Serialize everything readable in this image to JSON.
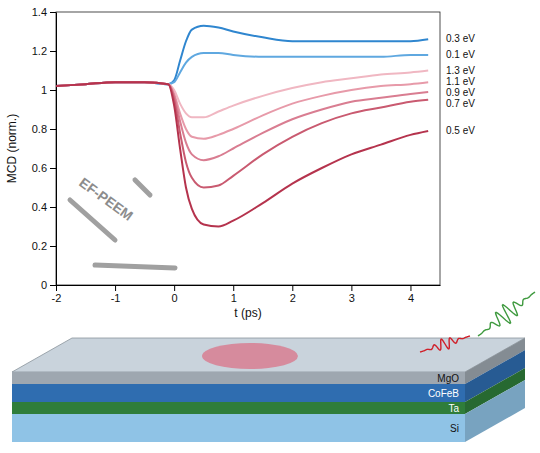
{
  "chart_data": {
    "type": "line",
    "x_label": "t (ps)",
    "y_label": "MCD (norm.)",
    "annotations": [
      "EF-PEEM",
      "MgO",
      "CoFeB",
      "Ta",
      "Si"
    ],
    "x": [
      -2,
      -1.5,
      -1,
      -0.5,
      -0.1,
      0,
      0.1,
      0.2,
      0.3,
      0.5,
      0.75,
      1,
      1.5,
      2,
      2.5,
      3,
      3.5,
      4,
      4.3
    ],
    "series": [
      {
        "name": "0.3 eV",
        "color": "#2f86cf",
        "values": [
          1.02,
          1.03,
          1.04,
          1.04,
          1.03,
          1.05,
          1.15,
          1.25,
          1.31,
          1.33,
          1.32,
          1.3,
          1.27,
          1.25,
          1.25,
          1.25,
          1.25,
          1.25,
          1.26
        ]
      },
      {
        "name": "0.1 eV",
        "color": "#5fa8e0",
        "values": [
          1.02,
          1.03,
          1.04,
          1.04,
          1.03,
          1.04,
          1.09,
          1.14,
          1.17,
          1.19,
          1.19,
          1.18,
          1.17,
          1.17,
          1.17,
          1.17,
          1.17,
          1.18,
          1.18
        ]
      },
      {
        "name": "1.3 eV",
        "color": "#f0b7c2",
        "values": [
          1.02,
          1.03,
          1.04,
          1.04,
          1.03,
          1.0,
          0.93,
          0.88,
          0.86,
          0.86,
          0.89,
          0.92,
          0.97,
          1.01,
          1.04,
          1.06,
          1.08,
          1.09,
          1.1
        ]
      },
      {
        "name": "1.1 eV",
        "color": "#e79aa9",
        "values": [
          1.02,
          1.03,
          1.04,
          1.04,
          1.03,
          0.98,
          0.88,
          0.8,
          0.76,
          0.75,
          0.77,
          0.8,
          0.87,
          0.93,
          0.97,
          1.0,
          1.02,
          1.03,
          1.04
        ]
      },
      {
        "name": "0.9 eV",
        "color": "#d97d91",
        "values": [
          1.02,
          1.03,
          1.04,
          1.04,
          1.03,
          0.97,
          0.84,
          0.73,
          0.67,
          0.64,
          0.66,
          0.7,
          0.78,
          0.85,
          0.9,
          0.94,
          0.96,
          0.98,
          0.99
        ]
      },
      {
        "name": "0.7 eV",
        "color": "#c95a70",
        "values": [
          1.02,
          1.03,
          1.04,
          1.04,
          1.03,
          0.95,
          0.78,
          0.63,
          0.55,
          0.5,
          0.51,
          0.56,
          0.67,
          0.76,
          0.83,
          0.88,
          0.91,
          0.94,
          0.95
        ]
      },
      {
        "name": "0.5 eV",
        "color": "#b5334d",
        "values": [
          1.02,
          1.03,
          1.04,
          1.04,
          1.03,
          0.92,
          0.7,
          0.5,
          0.39,
          0.31,
          0.3,
          0.33,
          0.42,
          0.52,
          0.6,
          0.67,
          0.72,
          0.77,
          0.79
        ]
      }
    ],
    "xlim": [
      -2,
      4.5
    ],
    "xticks": [
      -2,
      -1,
      0,
      1,
      2,
      3,
      4
    ],
    "ylim": [
      0,
      1.4
    ],
    "yticks": [
      0,
      0.2,
      0.4,
      0.6,
      0.8,
      1,
      1.2,
      1.4
    ],
    "grid": false,
    "line_style": "solid"
  }
}
